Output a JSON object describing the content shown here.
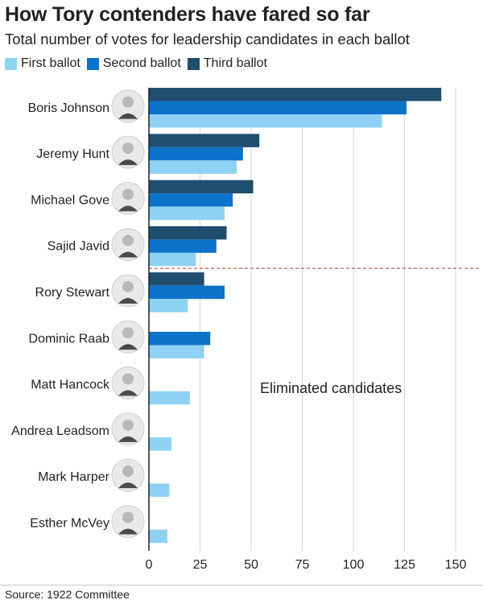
{
  "header": {
    "title": "How Tory contenders have fared so far",
    "subtitle": "Total number of votes for leadership candidates in each ballot"
  },
  "colors": {
    "first": "#8fd1f5",
    "second": "#0d72c9",
    "third": "#1f4e6e",
    "grid": "#d6d6d6",
    "axis": "#222222",
    "cutoff": "#c0504d"
  },
  "annotation": "Eliminated candidates",
  "source": "Source: 1922 Committee",
  "chart_data": {
    "type": "bar",
    "orientation": "horizontal",
    "title": "How Tory contenders have fared so far",
    "subtitle": "Total number of votes for leadership candidates in each ballot",
    "xlabel": "",
    "ylabel": "",
    "xlim": [
      0,
      150
    ],
    "xticks": [
      0,
      25,
      50,
      75,
      100,
      125,
      150
    ],
    "grid": true,
    "legend_position": "top-left",
    "categories": [
      "Boris Johnson",
      "Jeremy Hunt",
      "Michael Gove",
      "Sajid Javid",
      "Rory Stewart",
      "Dominic Raab",
      "Matt Hancock",
      "Andrea Leadsom",
      "Mark Harper",
      "Esther McVey"
    ],
    "series": [
      {
        "name": "Third ballot",
        "color": "#1f4e6e",
        "values": [
          143,
          54,
          51,
          38,
          27,
          null,
          null,
          null,
          null,
          null
        ]
      },
      {
        "name": "Second ballot",
        "color": "#0d72c9",
        "values": [
          126,
          46,
          41,
          33,
          37,
          30,
          null,
          null,
          null,
          null
        ]
      },
      {
        "name": "First ballot",
        "color": "#8fd1f5",
        "values": [
          114,
          43,
          37,
          23,
          19,
          27,
          20,
          11,
          10,
          9
        ]
      }
    ],
    "legend": [
      "First ballot",
      "Second ballot",
      "Third ballot"
    ],
    "annotations": [
      "Eliminated candidates"
    ]
  }
}
